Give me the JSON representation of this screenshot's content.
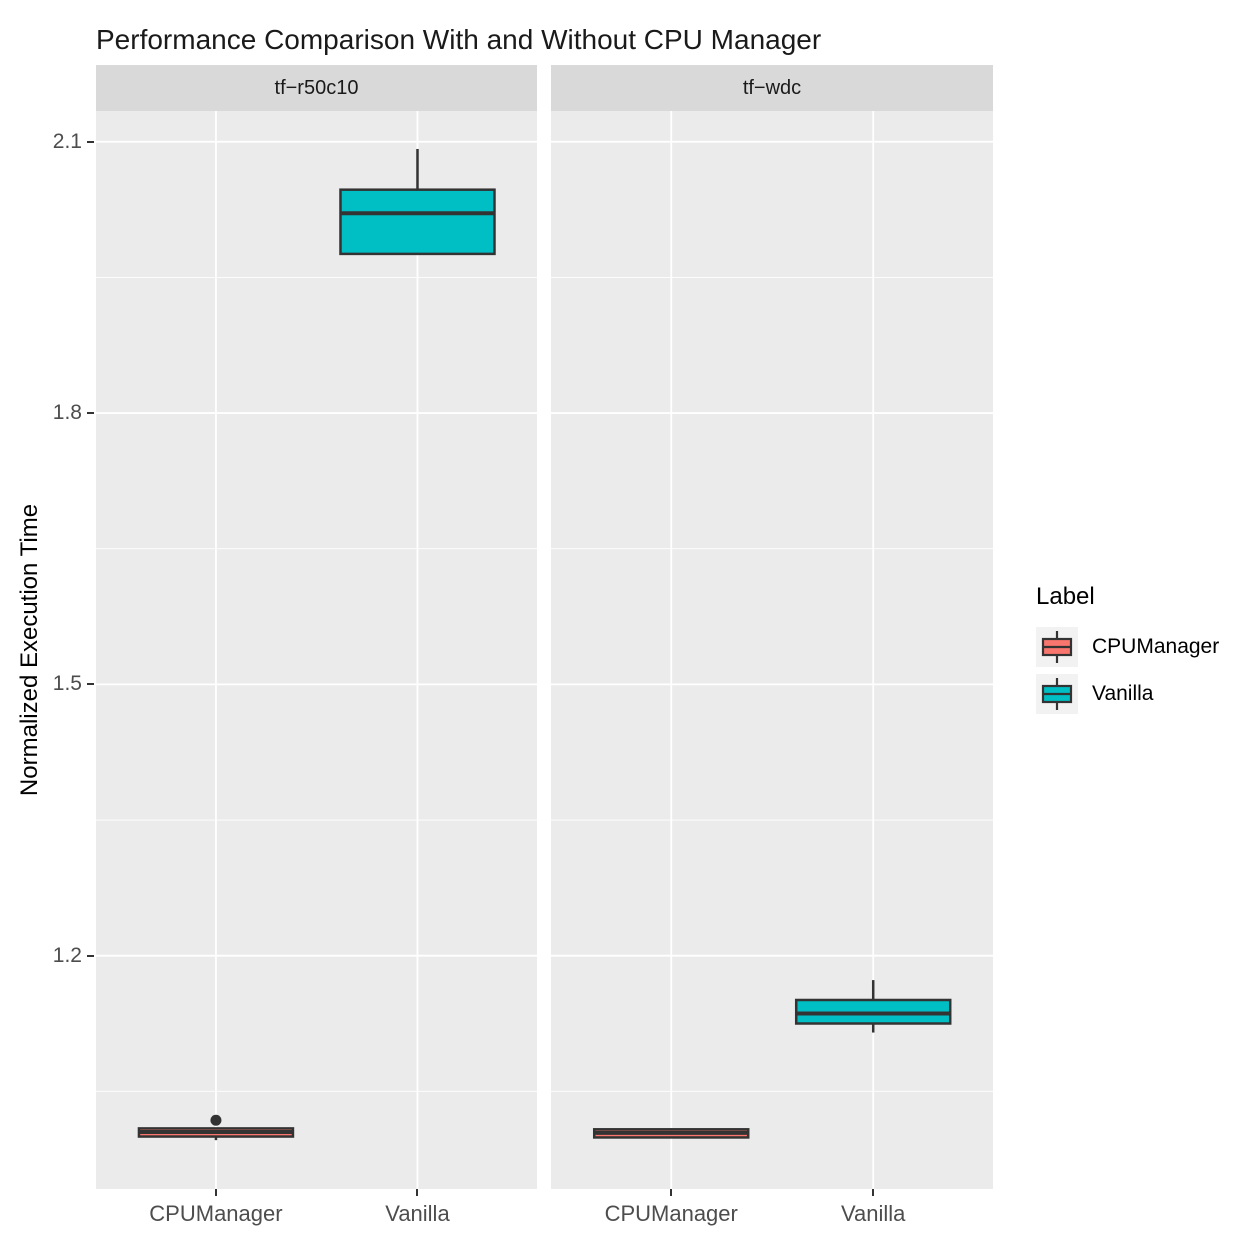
{
  "chart_data": {
    "type": "boxplot",
    "title": "Performance Comparison With and Without CPU Manager",
    "xlabel": "",
    "ylabel": "Normalized Execution Time",
    "x_categories": [
      "CPUManager",
      "Vanilla"
    ],
    "y_ticks": [
      2.1,
      1.8,
      1.5,
      1.2
    ],
    "y_minor_ticks": [
      1.95,
      1.65,
      1.35,
      1.05
    ],
    "ylim": [
      0.942,
      2.134
    ],
    "grid": "on",
    "legend": {
      "title": "Label",
      "position": "right",
      "entries": [
        {
          "label": "CPUManager",
          "color": "#F8766D"
        },
        {
          "label": "Vanilla",
          "color": "#00BFC4"
        }
      ]
    },
    "facets": [
      {
        "label": "tf−r50c10",
        "boxes": [
          {
            "category": "CPUManager",
            "series": "CPUManager",
            "color": "#F8766D",
            "whisker_low": 0.996,
            "q1": 1.0,
            "median": 1.005,
            "q3": 1.009,
            "whisker_high": 1.009,
            "outliers": [
              1.018
            ]
          },
          {
            "category": "Vanilla",
            "series": "Vanilla",
            "color": "#00BFC4",
            "whisker_low": 1.976,
            "q1": 1.976,
            "median": 2.021,
            "q3": 2.047,
            "whisker_high": 2.092,
            "outliers": []
          }
        ]
      },
      {
        "label": "tf−wdc",
        "boxes": [
          {
            "category": "CPUManager",
            "series": "CPUManager",
            "color": "#F8766D",
            "whisker_low": 0.998,
            "q1": 0.999,
            "median": 1.004,
            "q3": 1.008,
            "whisker_high": 1.009,
            "outliers": []
          },
          {
            "category": "Vanilla",
            "series": "Vanilla",
            "color": "#00BFC4",
            "whisker_low": 1.115,
            "q1": 1.125,
            "median": 1.136,
            "q3": 1.151,
            "whisker_high": 1.173,
            "outliers": []
          }
        ]
      }
    ],
    "colors": {
      "panel_bg": "#EBEBEB",
      "strip_bg": "#D9D9D9",
      "grid": "#FFFFFF",
      "box_stroke": "#333333",
      "outlier": "#333333",
      "legend_key_bg": "#F2F2F2",
      "tick_label": "#4D4D4D",
      "text": "#000000"
    }
  }
}
